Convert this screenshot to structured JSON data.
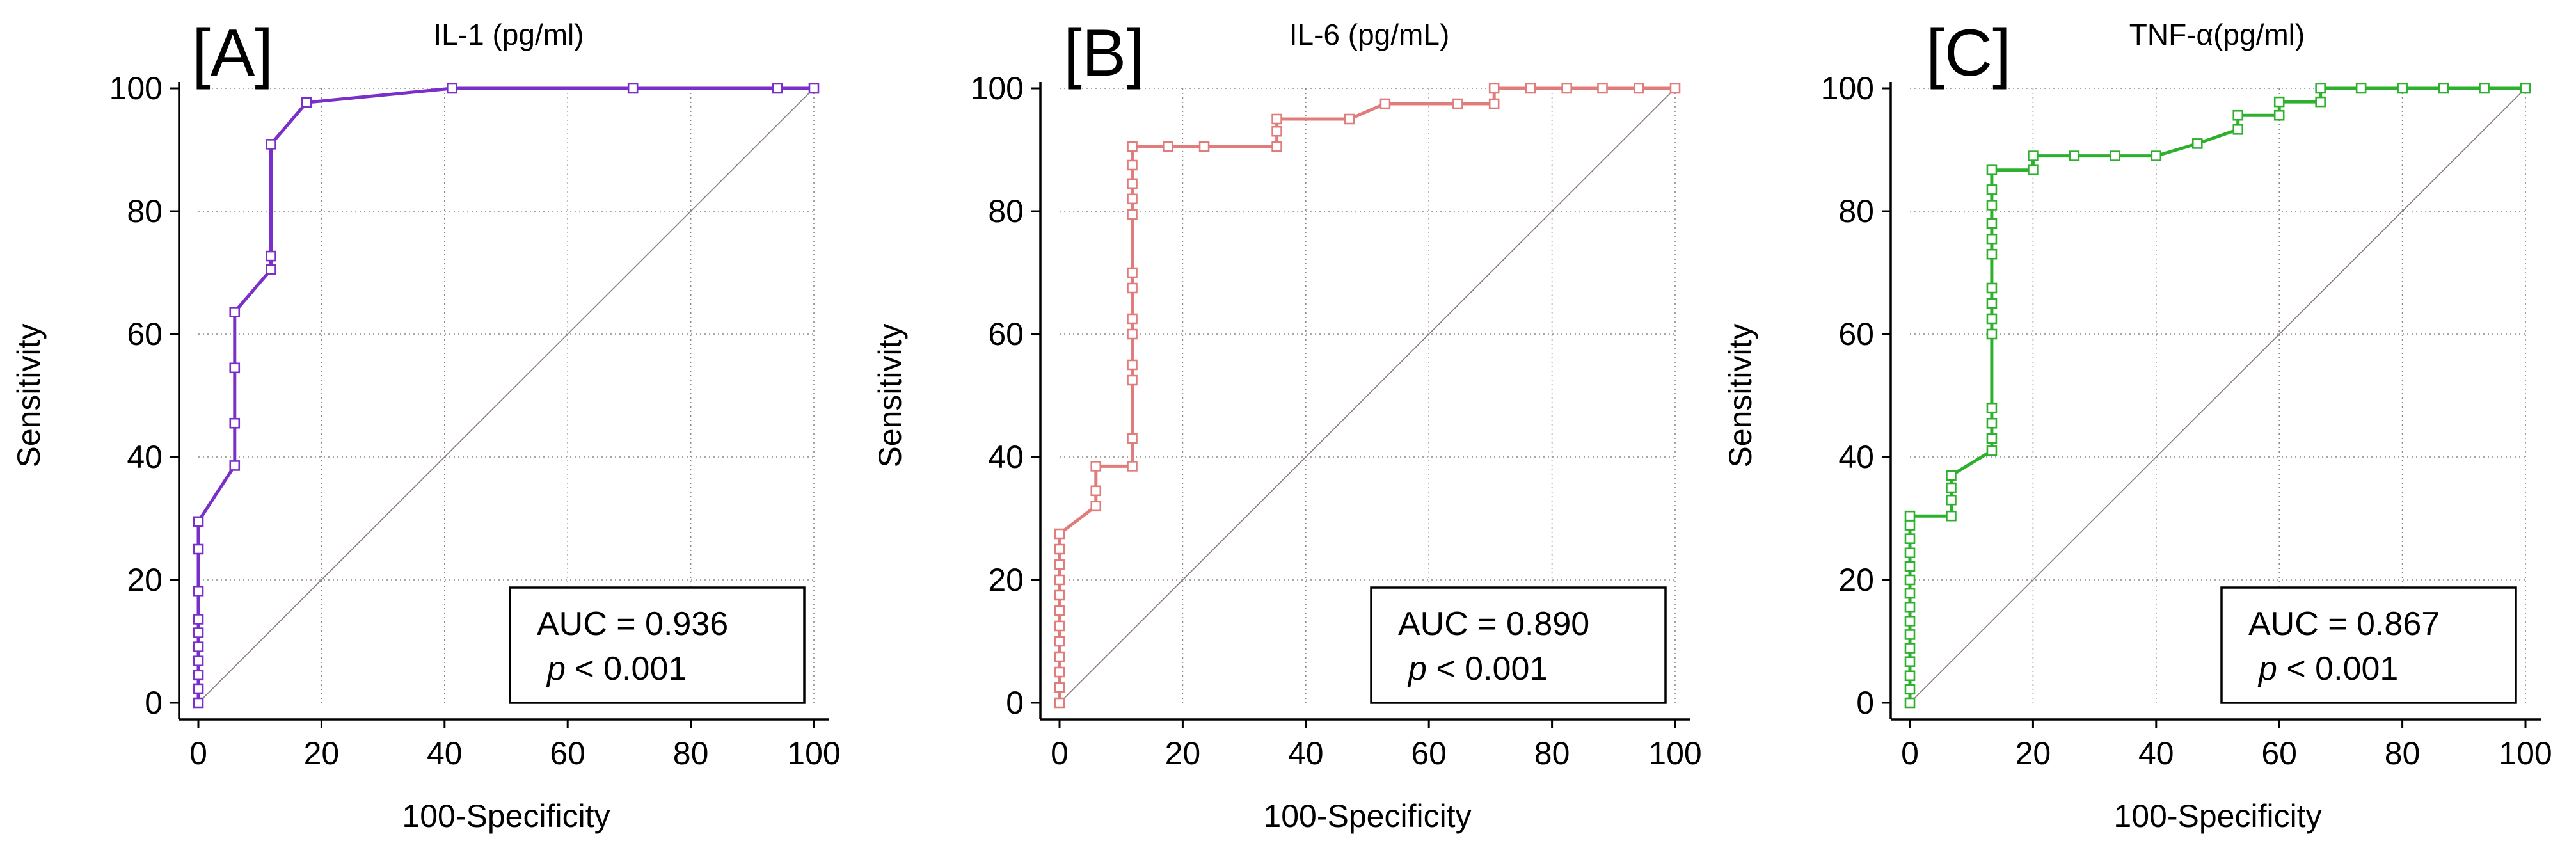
{
  "chart_data": [
    {
      "panel_label": "[A]",
      "type": "line",
      "title": "IL-1 (pg/ml)",
      "xlabel": "100-Specificity",
      "ylabel": "Sensitivity",
      "xlim": [
        0,
        100
      ],
      "ylim": [
        0,
        100
      ],
      "xticks": [
        "0",
        "20",
        "40",
        "60",
        "80",
        "100"
      ],
      "yticks": [
        "0",
        "20",
        "40",
        "60",
        "80",
        "100"
      ],
      "color": "#7B2FC9",
      "grid": true,
      "diagonal": true,
      "points": [
        [
          0,
          0
        ],
        [
          0,
          2.3
        ],
        [
          0,
          4.5
        ],
        [
          0,
          6.8
        ],
        [
          0,
          9.1
        ],
        [
          0,
          11.4
        ],
        [
          0,
          13.6
        ],
        [
          0,
          18.2
        ],
        [
          0,
          25.0
        ],
        [
          0,
          29.5
        ],
        [
          5.9,
          38.6
        ],
        [
          5.9,
          45.5
        ],
        [
          5.9,
          54.5
        ],
        [
          5.9,
          63.6
        ],
        [
          11.8,
          70.5
        ],
        [
          11.8,
          72.7
        ],
        [
          11.8,
          90.9
        ],
        [
          17.6,
          97.7
        ],
        [
          41.2,
          100
        ],
        [
          70.6,
          100
        ],
        [
          94.1,
          100
        ],
        [
          100,
          100
        ]
      ],
      "annotation": {
        "auc": "AUC = 0.936",
        "p_symbol": "p",
        "p_value": "< 0.001"
      }
    },
    {
      "panel_label": "[B]",
      "type": "line",
      "title": "IL-6 (pg/mL)",
      "xlabel": "100-Specificity",
      "ylabel": "Sensitivity",
      "xlim": [
        0,
        100
      ],
      "ylim": [
        0,
        100
      ],
      "xticks": [
        "0",
        "20",
        "40",
        "60",
        "80",
        "100"
      ],
      "yticks": [
        "0",
        "20",
        "40",
        "60",
        "80",
        "100"
      ],
      "color": "#E07C7C",
      "grid": true,
      "diagonal": true,
      "points": [
        [
          0,
          0
        ],
        [
          0,
          2.5
        ],
        [
          0,
          5
        ],
        [
          0,
          7.5
        ],
        [
          0,
          10
        ],
        [
          0,
          12.5
        ],
        [
          0,
          15
        ],
        [
          0,
          17.5
        ],
        [
          0,
          20
        ],
        [
          0,
          22.5
        ],
        [
          0,
          25
        ],
        [
          0,
          27.5
        ],
        [
          5.9,
          32
        ],
        [
          5.9,
          34.5
        ],
        [
          5.9,
          38.5
        ],
        [
          11.8,
          38.5
        ],
        [
          11.8,
          43
        ],
        [
          11.8,
          52.5
        ],
        [
          11.8,
          55
        ],
        [
          11.8,
          60
        ],
        [
          11.8,
          62.5
        ],
        [
          11.8,
          67.5
        ],
        [
          11.8,
          70
        ],
        [
          11.8,
          79.5
        ],
        [
          11.8,
          82
        ],
        [
          11.8,
          84.5
        ],
        [
          11.8,
          87.5
        ],
        [
          11.8,
          90.5
        ],
        [
          17.6,
          90.5
        ],
        [
          23.5,
          90.5
        ],
        [
          35.3,
          90.5
        ],
        [
          35.3,
          93
        ],
        [
          35.3,
          95
        ],
        [
          47.1,
          95
        ],
        [
          52.9,
          97.5
        ],
        [
          64.7,
          97.5
        ],
        [
          70.6,
          97.5
        ],
        [
          70.6,
          100
        ],
        [
          76.5,
          100
        ],
        [
          82.4,
          100
        ],
        [
          88.2,
          100
        ],
        [
          94.1,
          100
        ],
        [
          100,
          100
        ]
      ],
      "annotation": {
        "auc": "AUC = 0.890",
        "p_symbol": "p",
        "p_value": "< 0.001"
      }
    },
    {
      "panel_label": "[C]",
      "type": "line",
      "title": "TNF-α(pg/ml)",
      "xlabel": "100-Specificity",
      "ylabel": "Sensitivity",
      "xlim": [
        0,
        100
      ],
      "ylim": [
        0,
        100
      ],
      "xticks": [
        "0",
        "20",
        "40",
        "60",
        "80",
        "100"
      ],
      "yticks": [
        "0",
        "20",
        "40",
        "60",
        "80",
        "100"
      ],
      "color": "#2DB02D",
      "grid": true,
      "diagonal": true,
      "points": [
        [
          0,
          0
        ],
        [
          0,
          2.2
        ],
        [
          0,
          4.4
        ],
        [
          0,
          6.7
        ],
        [
          0,
          8.9
        ],
        [
          0,
          11.1
        ],
        [
          0,
          13.3
        ],
        [
          0,
          15.6
        ],
        [
          0,
          17.8
        ],
        [
          0,
          20
        ],
        [
          0,
          22.2
        ],
        [
          0,
          24.4
        ],
        [
          0,
          26.7
        ],
        [
          0,
          28.9
        ],
        [
          0,
          30.4
        ],
        [
          6.7,
          30.4
        ],
        [
          6.7,
          33
        ],
        [
          6.7,
          35
        ],
        [
          6.7,
          37
        ],
        [
          13.3,
          41
        ],
        [
          13.3,
          43
        ],
        [
          13.3,
          45.5
        ],
        [
          13.3,
          48
        ],
        [
          13.3,
          60
        ],
        [
          13.3,
          62.5
        ],
        [
          13.3,
          65
        ],
        [
          13.3,
          67.5
        ],
        [
          13.3,
          73
        ],
        [
          13.3,
          75.5
        ],
        [
          13.3,
          78
        ],
        [
          13.3,
          81
        ],
        [
          13.3,
          83.5
        ],
        [
          13.3,
          86.7
        ],
        [
          20,
          86.7
        ],
        [
          20,
          89
        ],
        [
          26.7,
          89
        ],
        [
          33.3,
          89
        ],
        [
          40,
          89
        ],
        [
          46.7,
          91
        ],
        [
          53.3,
          93.3
        ],
        [
          53.3,
          95.6
        ],
        [
          60,
          95.6
        ],
        [
          60,
          97.8
        ],
        [
          66.7,
          97.8
        ],
        [
          66.7,
          100
        ],
        [
          73.3,
          100
        ],
        [
          80,
          100
        ],
        [
          86.7,
          100
        ],
        [
          93.3,
          100
        ],
        [
          100,
          100
        ]
      ],
      "annotation": {
        "auc": "AUC = 0.867",
        "p_symbol": "p",
        "p_value": "< 0.001"
      }
    }
  ]
}
